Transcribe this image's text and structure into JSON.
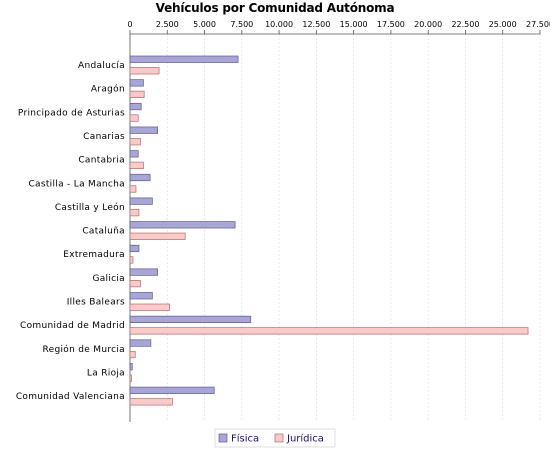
{
  "chart_data": {
    "type": "bar",
    "orientation": "horizontal",
    "title": "Vehículos por Comunidad Autónoma",
    "xlabel": "",
    "ylabel": "",
    "xlim": [
      0,
      27500
    ],
    "x_ticks": [
      "0",
      "2.500",
      "5.000",
      "7.500",
      "10.000",
      "12.500",
      "15.000",
      "17.500",
      "20.000",
      "22.500",
      "25.000",
      "27.500"
    ],
    "grid": true,
    "legend_position": "bottom",
    "categories": [
      "Andalucía",
      "Aragón",
      "Principado de Asturias",
      "Canarias",
      "Cantabria",
      "Castilla - La Mancha",
      "Castilla y León",
      "Cataluña",
      "Extremadura",
      "Galicia",
      "Illes Balears",
      "Comunidad de Madrid",
      "Región de Murcia",
      "La Rioja",
      "Comunidad Valenciana"
    ],
    "series": [
      {
        "name": "Física",
        "color": "#a8a6d4",
        "border": "#5c5a96",
        "values": [
          7250,
          900,
          750,
          1850,
          550,
          1350,
          1500,
          7050,
          600,
          1850,
          1500,
          8100,
          1400,
          150,
          5650
        ]
      },
      {
        "name": "Jurídica",
        "color": "#f8caca",
        "border": "#b46a6a",
        "values": [
          1950,
          950,
          550,
          700,
          900,
          400,
          600,
          3700,
          200,
          700,
          2650,
          26700,
          350,
          100,
          2850
        ]
      }
    ]
  }
}
